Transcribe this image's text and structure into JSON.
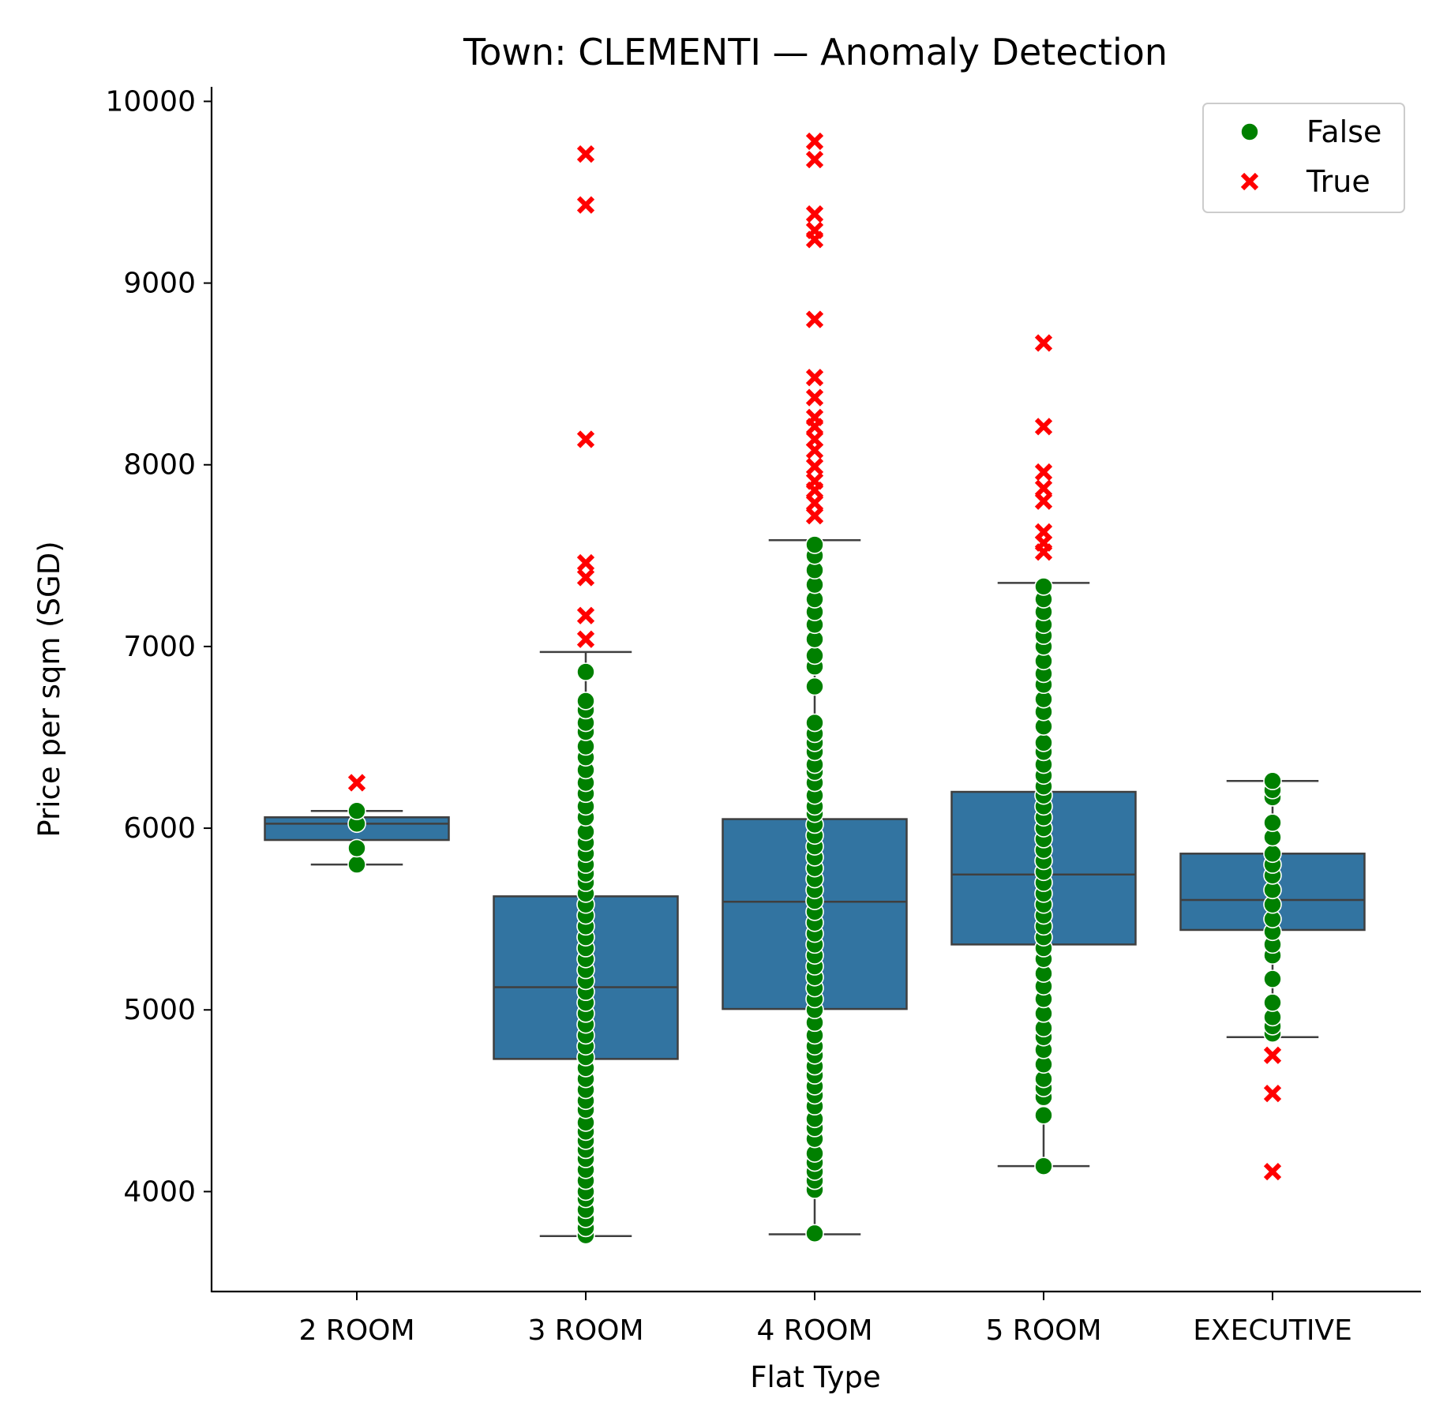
{
  "chart_data": {
    "type": "box",
    "title": "Town: CLEMENTI — Anomaly Detection",
    "xlabel": "Flat Type",
    "ylabel": "Price per sqm (SGD)",
    "ylim": [
      3450,
      10080
    ],
    "yticks": [
      4000,
      5000,
      6000,
      7000,
      8000,
      9000,
      10000
    ],
    "categories": [
      "2 ROOM",
      "3 ROOM",
      "4 ROOM",
      "5 ROOM",
      "EXECUTIVE"
    ],
    "box_color": "#3274a1",
    "box_edge_color": "#3f3f3f",
    "legend": {
      "placement": "top-right",
      "entries": [
        {
          "label": "False",
          "marker": "circle",
          "color": "#008000"
        },
        {
          "label": "True",
          "marker": "x",
          "color": "#ff0000"
        }
      ]
    },
    "boxes": [
      {
        "category": "2 ROOM",
        "whislo": 5800,
        "q1": 5935,
        "median": 6025,
        "q3": 6060,
        "whishi": 6095
      },
      {
        "category": "3 ROOM",
        "whislo": 3755,
        "q1": 4730,
        "median": 5125,
        "q3": 5625,
        "whishi": 6970
      },
      {
        "category": "4 ROOM",
        "whislo": 3765,
        "q1": 5005,
        "median": 5595,
        "q3": 6050,
        "whishi": 7585
      },
      {
        "category": "5 ROOM",
        "whislo": 4140,
        "q1": 5360,
        "median": 5745,
        "q3": 6200,
        "whishi": 7350
      },
      {
        "category": "EXECUTIVE",
        "whislo": 4850,
        "q1": 5440,
        "median": 5605,
        "q3": 5860,
        "whishi": 6260
      }
    ],
    "series": [
      {
        "name": "False",
        "points": {
          "2 ROOM": [
            5800,
            5890,
            6025,
            6095
          ],
          "3 ROOM": [
            3760,
            3800,
            3850,
            3900,
            3960,
            4000,
            4060,
            4120,
            4180,
            4230,
            4280,
            4330,
            4380,
            4450,
            4500,
            4560,
            4620,
            4680,
            4740,
            4800,
            4860,
            4920,
            4980,
            5040,
            5100,
            5160,
            5220,
            5280,
            5340,
            5400,
            5460,
            5520,
            5580,
            5640,
            5700,
            5750,
            5800,
            5860,
            5920,
            5980,
            6060,
            6120,
            6190,
            6250,
            6320,
            6390,
            6450,
            6530,
            6580,
            6650,
            6700,
            6860
          ],
          "4 ROOM": [
            3770,
            4010,
            4060,
            4110,
            4160,
            4210,
            4290,
            4350,
            4400,
            4470,
            4530,
            4580,
            4640,
            4690,
            4750,
            4800,
            4860,
            4930,
            5000,
            5060,
            5120,
            5180,
            5240,
            5300,
            5360,
            5420,
            5480,
            5540,
            5600,
            5660,
            5720,
            5780,
            5840,
            5900,
            5960,
            6020,
            6080,
            6120,
            6180,
            6250,
            6310,
            6350,
            6420,
            6470,
            6520,
            6580,
            6780,
            6890,
            6950,
            7040,
            7120,
            7190,
            7260,
            7340,
            7420,
            7500,
            7560
          ],
          "5 ROOM": [
            4140,
            4420,
            4520,
            4570,
            4620,
            4700,
            4780,
            4850,
            4900,
            4980,
            5060,
            5130,
            5200,
            5280,
            5340,
            5400,
            5460,
            5520,
            5580,
            5640,
            5700,
            5760,
            5820,
            5880,
            5940,
            6000,
            6060,
            6120,
            6180,
            6230,
            6290,
            6350,
            6420,
            6470,
            6560,
            6640,
            6710,
            6790,
            6850,
            6920,
            7000,
            7060,
            7120,
            7190,
            7260,
            7330
          ],
          "EXECUTIVE": [
            4870,
            4910,
            4960,
            5040,
            5170,
            5300,
            5360,
            5430,
            5500,
            5580,
            5660,
            5740,
            5800,
            5860,
            5950,
            6030,
            6170,
            6210,
            6260
          ]
        }
      },
      {
        "name": "True",
        "points": {
          "2 ROOM": [
            6250
          ],
          "3 ROOM": [
            7040,
            7170,
            7380,
            7460,
            8140,
            9430,
            9710
          ],
          "4 ROOM": [
            7720,
            7790,
            7860,
            7910,
            7990,
            8080,
            8140,
            8210,
            8260,
            8370,
            8480,
            8800,
            9240,
            9290,
            9380,
            9680,
            9780
          ],
          "5 ROOM": [
            7520,
            7570,
            7630,
            7800,
            7870,
            7960,
            8210,
            8670
          ],
          "EXECUTIVE": [
            4110,
            4540,
            4750
          ]
        }
      }
    ]
  }
}
